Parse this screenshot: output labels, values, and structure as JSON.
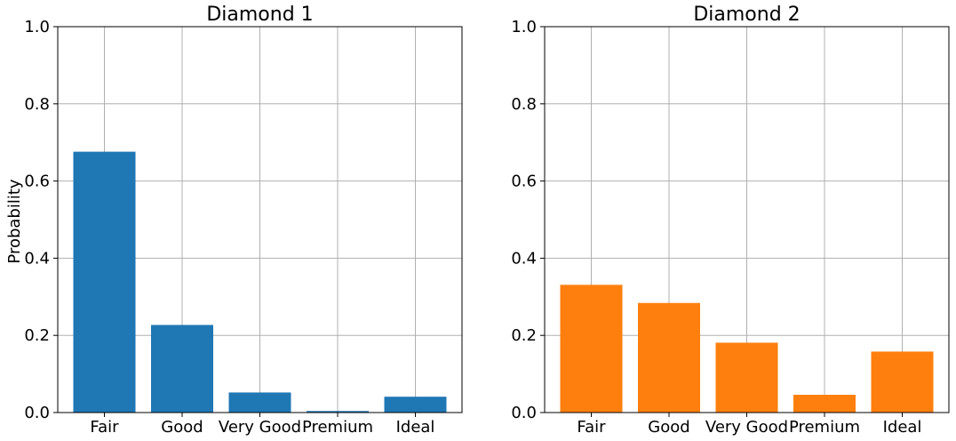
{
  "chart_data": [
    {
      "type": "bar",
      "title": "Diamond 1",
      "ylabel": "Probability",
      "xlabel": "",
      "categories": [
        "Fair",
        "Good",
        "Very Good",
        "Premium",
        "Ideal"
      ],
      "values": [
        0.676,
        0.227,
        0.052,
        0.004,
        0.041
      ],
      "ylim": [
        0,
        1.0
      ],
      "yticks": [
        "0.0",
        "0.2",
        "0.4",
        "0.6",
        "0.8",
        "1.0"
      ],
      "color": "#1f77b4",
      "grid": true
    },
    {
      "type": "bar",
      "title": "Diamond 2",
      "ylabel": "",
      "xlabel": "",
      "categories": [
        "Fair",
        "Good",
        "Very Good",
        "Premium",
        "Ideal"
      ],
      "values": [
        0.331,
        0.284,
        0.181,
        0.046,
        0.158
      ],
      "ylim": [
        0,
        1.0
      ],
      "yticks": [
        "0.0",
        "0.2",
        "0.4",
        "0.6",
        "0.8",
        "1.0"
      ],
      "color": "#ff7f0e",
      "grid": true
    }
  ]
}
